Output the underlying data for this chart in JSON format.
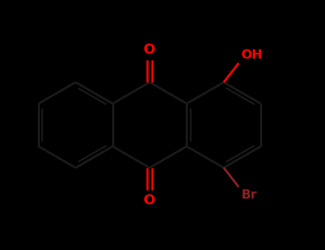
{
  "background_color": "#000000",
  "bond_color": "#1a1a1a",
  "bond_width": 2.2,
  "O_color": "#ff0000",
  "OH_color": "#ff0000",
  "Br_color": "#8B2020",
  "fig_width": 4.55,
  "fig_height": 3.5,
  "dpi": 100,
  "bl": 1.0,
  "shift_x": -0.3,
  "shift_y": 0.0,
  "xlim": [
    -3.8,
    3.8
  ],
  "ylim": [
    -2.5,
    2.5
  ]
}
